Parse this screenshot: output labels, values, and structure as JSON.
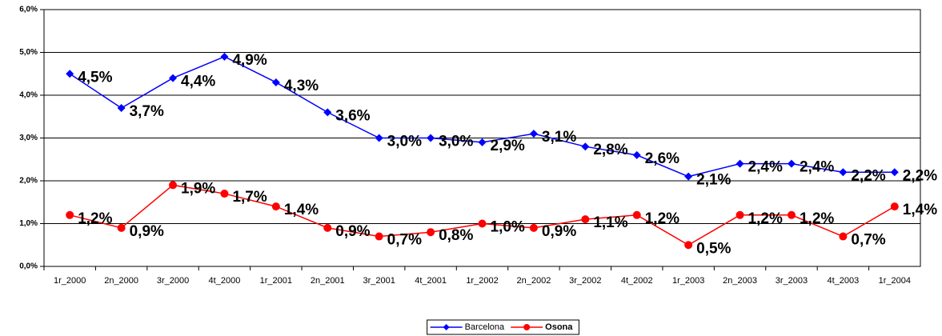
{
  "chart_data": {
    "type": "line",
    "categories": [
      "1r_2000",
      "2n_2000",
      "3r_2000",
      "4t_2000",
      "1r_2001",
      "2n_2001",
      "3r_2001",
      "4t_2001",
      "1r_2002",
      "2n_2002",
      "3r_2002",
      "4t_2002",
      "1r_2003",
      "2n_2003",
      "3r_2003",
      "4t_2003",
      "1r_2004"
    ],
    "series": [
      {
        "name": "Barcelona",
        "color": "#0000ff",
        "marker": "diamond",
        "values": [
          4.5,
          3.7,
          4.4,
          4.9,
          4.3,
          3.6,
          3.0,
          3.0,
          2.9,
          3.1,
          2.8,
          2.6,
          2.1,
          2.4,
          2.4,
          2.2,
          2.2
        ],
        "value_labels": [
          "4,5%",
          "3,7%",
          "4,4%",
          "4,9%",
          "4,3%",
          "3,6%",
          "3,0%",
          "3,0%",
          "2,9%",
          "3,1%",
          "2,8%",
          "2,6%",
          "2,1%",
          "2,4%",
          "2,4%",
          "2,2%",
          "2,2%"
        ]
      },
      {
        "name": "Osona",
        "color": "#ff0000",
        "marker": "circle",
        "values": [
          1.2,
          0.9,
          1.9,
          1.7,
          1.4,
          0.9,
          0.7,
          0.8,
          1.0,
          0.9,
          1.1,
          1.2,
          0.5,
          1.2,
          1.2,
          0.7,
          1.4
        ],
        "value_labels": [
          "1,2%",
          "0,9%",
          "1,9%",
          "1,7%",
          "1,4%",
          "0,9%",
          "0,7%",
          "0,8%",
          "1,0%",
          "0,9%",
          "1,1%",
          "1,2%",
          "0,5%",
          "1,2%",
          "1,2%",
          "0,7%",
          "1,4%"
        ]
      }
    ],
    "ylim": [
      0,
      6
    ],
    "yticks": [
      {
        "value": 0,
        "label": "0,0%"
      },
      {
        "value": 1,
        "label": "1,0%"
      },
      {
        "value": 2,
        "label": "2,0%"
      },
      {
        "value": 3,
        "label": "3,0%"
      },
      {
        "value": 4,
        "label": "4,0%"
      },
      {
        "value": 5,
        "label": "5,0%"
      },
      {
        "value": 6,
        "label": "6,0%"
      }
    ],
    "grid": true,
    "legend": "bottom"
  }
}
